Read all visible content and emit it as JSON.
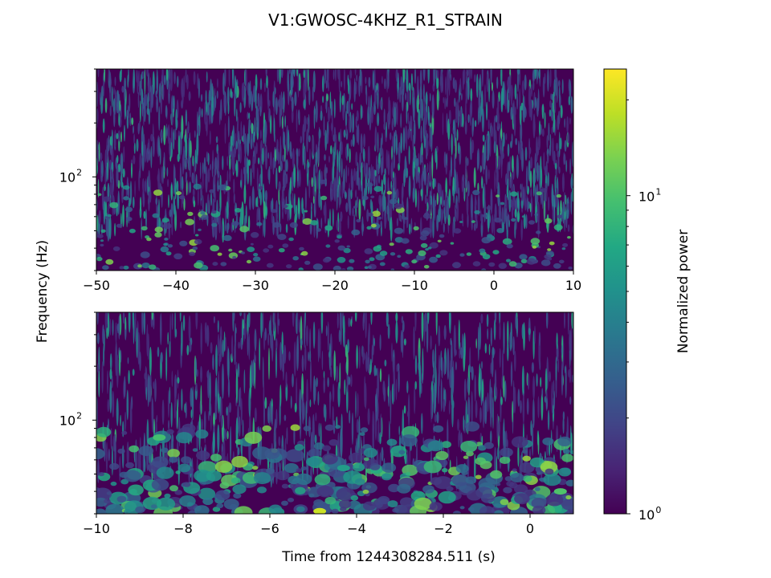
{
  "chart_data": {
    "type": "heatmap",
    "title": "V1:GWOSC-4KHZ_R1_STRAIN",
    "ylabel": "Frequency (Hz)",
    "xlabel": "Time from 1244308284.511 (s)",
    "yscale": "log",
    "grid": false,
    "colormap": "viridis",
    "panels": [
      {
        "name": "top",
        "xlim": [
          -50,
          10
        ],
        "ylim": [
          30,
          400
        ],
        "xticks": [
          -50,
          -40,
          -30,
          -20,
          -10,
          0,
          10
        ],
        "xtick_labels": [
          "−50",
          "−40",
          "−30",
          "−20",
          "−10",
          "0",
          "10"
        ],
        "yticks": [
          100
        ],
        "ytick_labels": [
          "10",
          "2"
        ]
      },
      {
        "name": "bottom",
        "xlim": [
          -10,
          1
        ],
        "ylim": [
          30,
          400
        ],
        "xticks": [
          -10,
          -8,
          -6,
          -4,
          -2,
          0
        ],
        "xtick_labels": [
          "−10",
          "−8",
          "−6",
          "−4",
          "−2",
          "0"
        ],
        "yticks": [
          100
        ],
        "ytick_labels": [
          "10",
          "2"
        ]
      }
    ],
    "colorbar": {
      "label": "Normalized power",
      "scale": "log",
      "range": [
        1,
        25
      ],
      "ticks": [
        {
          "value": 1,
          "base": "10",
          "exp": "0"
        },
        {
          "value": 10,
          "base": "10",
          "exp": "1"
        }
      ]
    },
    "colors": {
      "cmap_stops": [
        "#440154",
        "#482475",
        "#414487",
        "#355f8d",
        "#2a788e",
        "#21918c",
        "#22a884",
        "#44bf70",
        "#7ad151",
        "#bddf26",
        "#fde725"
      ]
    }
  }
}
